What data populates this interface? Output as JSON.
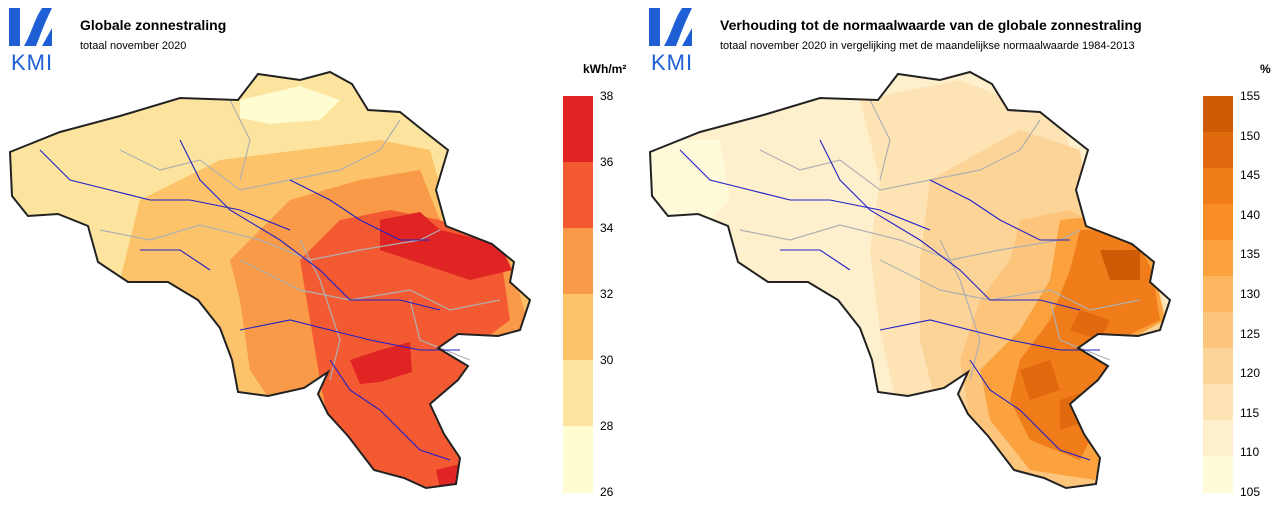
{
  "logo": {
    "text": "KMI",
    "color": "#1e5fd6"
  },
  "panels": [
    {
      "title": "Globale zonnestraling",
      "subtitle": "totaal november 2020",
      "unit": "kWh/m²",
      "legend": {
        "ticks": [
          "38",
          "36",
          "34",
          "32",
          "30",
          "28",
          "26"
        ],
        "colors": [
          "#e02424",
          "#f45a32",
          "#f99a48",
          "#fcc36a",
          "#fde49e",
          "#fefcd0"
        ]
      }
    },
    {
      "title": "Verhouding tot de normaalwaarde van de globale zonnestraling",
      "subtitle": "totaal november 2020 in vergelijking met de maandelijkse normaalwaarde 1984-2013",
      "unit": "%",
      "legend": {
        "ticks": [
          "155",
          "150",
          "145",
          "140",
          "135",
          "130",
          "125",
          "120",
          "115",
          "110",
          "105"
        ],
        "colors": [
          "#cf5a06",
          "#e26a0e",
          "#f07c1a",
          "#f98e26",
          "#fba23e",
          "#fcb660",
          "#fdc57c",
          "#fdd498",
          "#fee3b4",
          "#fef0cd",
          "#fffad9"
        ]
      }
    }
  ]
}
